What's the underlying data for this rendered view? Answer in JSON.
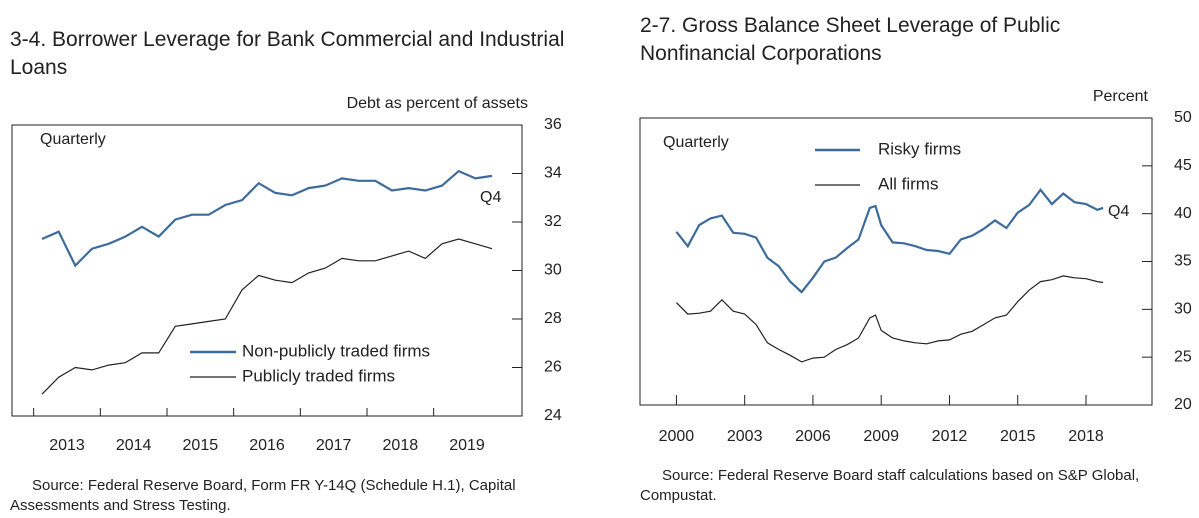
{
  "chart_data": [
    {
      "type": "line",
      "title": "3-4. Borrower Leverage for Bank Commercial and Industrial Loans",
      "y_label": "Debt as percent of assets",
      "annotations": [
        "Quarterly",
        "Q4"
      ],
      "source": "Source: Federal Reserve Board, Form FR Y-14Q (Schedule H.1), Capital Assessments and Stress Testing.",
      "categories": [
        "2013",
        null,
        null,
        null,
        "2014",
        null,
        null,
        null,
        "2015",
        null,
        null,
        null,
        "2016",
        null,
        null,
        null,
        "2017",
        null,
        null,
        null,
        "2018",
        null,
        null,
        null,
        "2019",
        null,
        null,
        null
      ],
      "series": [
        {
          "name": "Non-publicly traded firms",
          "color": "#3d6c9c",
          "values": [
            31.3,
            31.6,
            30.2,
            30.9,
            31.1,
            31.4,
            31.8,
            31.4,
            32.1,
            32.3,
            32.3,
            32.7,
            32.9,
            33.6,
            33.2,
            33.1,
            33.4,
            33.5,
            33.8,
            33.7,
            33.7,
            33.3,
            33.4,
            33.3,
            33.5,
            34.1,
            33.8,
            33.9
          ]
        },
        {
          "name": "Publicly traded firms",
          "color": "#222222",
          "values": [
            24.9,
            25.6,
            26.0,
            25.9,
            26.1,
            26.2,
            26.6,
            26.6,
            27.7,
            27.8,
            27.9,
            28.0,
            29.2,
            29.8,
            29.6,
            29.5,
            29.9,
            30.1,
            30.5,
            30.4,
            30.4,
            30.6,
            30.8,
            30.5,
            31.1,
            31.3,
            31.1,
            30.9
          ]
        }
      ],
      "ylim": [
        24,
        36
      ],
      "yticks": [
        24,
        26,
        28,
        30,
        32,
        34,
        36
      ],
      "legend": "lower center"
    },
    {
      "type": "line",
      "title": "2-7. Gross Balance Sheet Leverage of Public Nonfinancial Corporations",
      "y_label": "Percent",
      "annotations": [
        "Quarterly",
        "Q4"
      ],
      "source": "Source: Federal Reserve Board staff calculations based on S&P Global, Compustat.",
      "x": [
        2000,
        2000.5,
        2001,
        2001.5,
        2002,
        2002.5,
        2003,
        2003.5,
        2004,
        2004.5,
        2005,
        2005.5,
        2006,
        2006.5,
        2007,
        2007.5,
        2008,
        2008.5,
        2008.75,
        2009,
        2009.5,
        2010,
        2010.5,
        2011,
        2011.5,
        2012,
        2012.5,
        2013,
        2013.5,
        2014,
        2014.5,
        2015,
        2015.5,
        2016,
        2016.5,
        2017,
        2017.5,
        2018,
        2018.5,
        2018.75
      ],
      "series": [
        {
          "name": "Risky firms",
          "color": "#3d6c9c",
          "values": [
            38.1,
            36.6,
            38.8,
            39.5,
            39.8,
            38.0,
            37.9,
            37.5,
            35.4,
            34.5,
            32.9,
            31.8,
            33.3,
            35.0,
            35.4,
            36.4,
            37.3,
            40.6,
            40.8,
            38.8,
            37.0,
            36.9,
            36.6,
            36.2,
            36.1,
            35.8,
            37.3,
            37.7,
            38.4,
            39.3,
            38.5,
            40.1,
            40.9,
            42.5,
            41.0,
            42.1,
            41.2,
            41.0,
            40.4,
            40.6
          ]
        },
        {
          "name": "All firms",
          "color": "#222222",
          "values": [
            30.7,
            29.5,
            29.6,
            29.8,
            31.0,
            29.8,
            29.5,
            28.4,
            26.5,
            25.8,
            25.2,
            24.5,
            24.9,
            25.0,
            25.8,
            26.3,
            27.0,
            29.1,
            29.4,
            27.8,
            27.0,
            26.7,
            26.5,
            26.4,
            26.7,
            26.8,
            27.4,
            27.7,
            28.4,
            29.1,
            29.4,
            30.8,
            32.0,
            32.9,
            33.1,
            33.5,
            33.3,
            33.2,
            32.9,
            32.8
          ]
        }
      ],
      "xlim": [
        1998.4,
        2020.9
      ],
      "xticks": [
        2000,
        2003,
        2006,
        2009,
        2012,
        2015,
        2018
      ],
      "ylim": [
        20,
        50
      ],
      "yticks": [
        20,
        25,
        30,
        35,
        40,
        45,
        50
      ],
      "legend": "upper center"
    }
  ]
}
